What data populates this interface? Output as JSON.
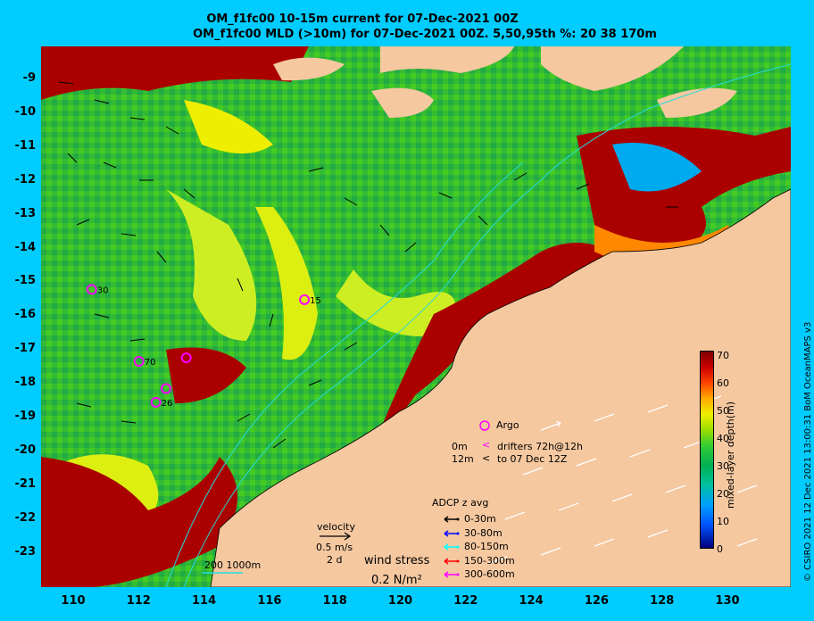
{
  "title_line1": "OM_f1fc00 10-15m current for 07-Dec-2021 00Z",
  "title_line2": "OM_f1fc00 MLD (>10m) for 07-Dec-2021 00Z. 5,50,95th %: 20   38  170m",
  "y_ticks": [
    "-9",
    "-10",
    "-11",
    "-12",
    "-13",
    "-14",
    "-15",
    "-16",
    "-17",
    "-18",
    "-19",
    "-20",
    "-21",
    "-22",
    "-23"
  ],
  "x_ticks": [
    "110",
    "112",
    "114",
    "116",
    "118",
    "120",
    "122",
    "124",
    "126",
    "128",
    "130"
  ],
  "argo_floats": [
    {
      "id": "30",
      "lon": 110.5,
      "lat": -15.2
    },
    {
      "id": "15",
      "lon": 116.8,
      "lat": -15.5
    },
    {
      "id": "70",
      "lon": 111.9,
      "lat": -17.3
    },
    {
      "id": "",
      "lon": 113.3,
      "lat": -17.2
    },
    {
      "id": "",
      "lon": 112.7,
      "lat": -18.1
    },
    {
      "id": "26",
      "lon": 112.4,
      "lat": -18.5
    }
  ],
  "legend": {
    "argo": "Argo",
    "drifters_a": "0m",
    "drifters_b": "12m",
    "drifters_c": "drifters 72h@12h",
    "drifters_d": "to 07 Dec 12Z",
    "adcp_title": "ADCP z avg",
    "adcp": [
      {
        "label": "0-30m",
        "color": "#000000"
      },
      {
        "label": "30-80m",
        "color": "#0000ff"
      },
      {
        "label": "80-150m",
        "color": "#00ffff"
      },
      {
        "label": "150-300m",
        "color": "#ff0000"
      },
      {
        "label": "300-600m",
        "color": "#ff00ff"
      }
    ],
    "velocity_title": "velocity",
    "velocity_val": "0.5 m/s",
    "velocity_days": "2 d",
    "isobaths": "200  1000m",
    "wind_title": "wind stress",
    "wind_val": "0.2 N/m²"
  },
  "colorbar": {
    "title": "mixed-layer depth(m)",
    "ticks": [
      "70",
      "60",
      "50",
      "40",
      "30",
      "20",
      "10",
      "0"
    ]
  },
  "copyright": "© CSIRO 2021  12 Dec 2021 13:00:31 BoM OceanMAPS v3",
  "colors": {
    "land": "#f5c8a0",
    "sea_border": "#00ccff"
  }
}
